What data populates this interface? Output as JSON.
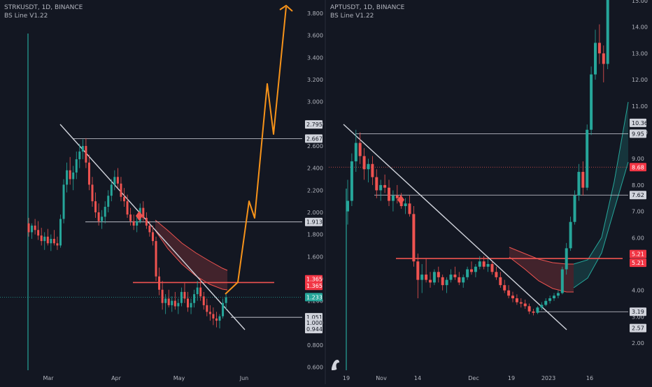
{
  "colors": {
    "background": "#131722",
    "panel": "#161a25",
    "axis_text": "#b2b5be",
    "up": "#26a69a",
    "down": "#ef5350",
    "projection": "#f7931a",
    "level_line": "#d1d4dc",
    "current_price": "#26a69a"
  },
  "left_panel": {
    "header": {
      "symbol": "STRKUSDT, 1D, BINANCE",
      "indicator": "BS Line V1.22"
    },
    "y_ticks": [
      "3.800",
      "3.600",
      "3.400",
      "3.200",
      "3.000",
      "2.800",
      "2.600",
      "2.400",
      "2.200",
      "2.000",
      "1.800",
      "1.600",
      "1.400",
      "1.200",
      "1.000",
      "0.800",
      "0.600"
    ],
    "x_ticks": [
      "Mar",
      "Apr",
      "May",
      "Jun"
    ],
    "price_labels": [
      {
        "text": "2.795",
        "kind": "level"
      },
      {
        "text": "2.667",
        "kind": "level"
      },
      {
        "text": "1.913",
        "kind": "level"
      },
      {
        "text": "1.365",
        "kind": "red"
      },
      {
        "text": "1.365",
        "kind": "red"
      },
      {
        "text": "1.233",
        "kind": "current"
      },
      {
        "text": "1.051",
        "kind": "level"
      },
      {
        "text": "1.000",
        "kind": "level"
      },
      {
        "text": "0.944",
        "kind": "level"
      }
    ]
  },
  "right_panel": {
    "header": {
      "symbol": "APTUSDT, 1D, BINANCE",
      "indicator": "BS Line V1.22"
    },
    "y_ticks": [
      "15.00",
      "14.00",
      "13.00",
      "12.00",
      "11.00",
      "10.00",
      "9.00",
      "8.00",
      "7.00",
      "6.00",
      "5.00",
      "4.00",
      "3.00",
      "2.00"
    ],
    "x_ticks": [
      "19",
      "Nov",
      "14",
      "Dec",
      "19",
      "2023",
      "16"
    ],
    "price_labels": [
      {
        "text": "10.36",
        "kind": "level"
      },
      {
        "text": "9.95",
        "kind": "level"
      },
      {
        "text": "8.68",
        "kind": "red"
      },
      {
        "text": "7.62",
        "kind": "level"
      },
      {
        "text": "5.21",
        "kind": "red"
      },
      {
        "text": "5.21",
        "kind": "red"
      },
      {
        "text": "3.19",
        "kind": "level"
      },
      {
        "text": "2.57",
        "kind": "level"
      }
    ]
  },
  "chart_data": [
    {
      "type": "candlestick",
      "title": "STRKUSDT, 1D, BINANCE",
      "indicator": "BS Line V1.22",
      "x_ticks": [
        "Mar",
        "Apr",
        "May",
        "Jun"
      ],
      "ylim": [
        0.55,
        3.95
      ],
      "horizontal_levels": [
        2.667,
        1.913,
        1.365,
        1.051
      ],
      "projection_path": [
        1.28,
        1.45,
        2.07,
        1.92,
        3.15,
        2.7,
        3.85
      ],
      "ohlc": [
        [
          1.9,
          1.95,
          1.78,
          1.82
        ],
        [
          1.82,
          1.9,
          1.76,
          1.88
        ],
        [
          1.88,
          1.94,
          1.8,
          1.84
        ],
        [
          1.84,
          1.92,
          1.75,
          1.79
        ],
        [
          1.79,
          1.86,
          1.7,
          1.74
        ],
        [
          1.74,
          1.82,
          1.66,
          1.78
        ],
        [
          1.78,
          1.85,
          1.7,
          1.72
        ],
        [
          1.72,
          1.8,
          1.65,
          1.76
        ],
        [
          1.76,
          1.84,
          1.7,
          1.72
        ],
        [
          1.72,
          1.78,
          1.66,
          1.7
        ],
        [
          1.7,
          1.98,
          1.68,
          1.94
        ],
        [
          1.94,
          2.3,
          1.9,
          2.25
        ],
        [
          2.25,
          2.45,
          2.18,
          2.38
        ],
        [
          2.38,
          2.5,
          2.25,
          2.3
        ],
        [
          2.3,
          2.42,
          2.2,
          2.36
        ],
        [
          2.36,
          2.55,
          2.3,
          2.48
        ],
        [
          2.48,
          2.62,
          2.4,
          2.55
        ],
        [
          2.55,
          2.66,
          2.48,
          2.6
        ],
        [
          2.6,
          2.67,
          2.4,
          2.45
        ],
        [
          2.45,
          2.52,
          2.2,
          2.25
        ],
        [
          2.25,
          2.32,
          2.05,
          2.1
        ],
        [
          2.1,
          2.18,
          1.95,
          2.0
        ],
        [
          2.0,
          2.08,
          1.88,
          1.92
        ],
        [
          1.92,
          2.02,
          1.85,
          1.96
        ],
        [
          1.96,
          2.1,
          1.9,
          2.05
        ],
        [
          2.05,
          2.2,
          2.0,
          2.15
        ],
        [
          2.15,
          2.3,
          2.1,
          2.25
        ],
        [
          2.25,
          2.38,
          2.2,
          2.32
        ],
        [
          2.32,
          2.4,
          2.22,
          2.26
        ],
        [
          2.26,
          2.32,
          2.1,
          2.14
        ],
        [
          2.14,
          2.22,
          2.05,
          2.1
        ],
        [
          2.1,
          2.16,
          1.95,
          1.98
        ],
        [
          1.98,
          2.04,
          1.88,
          1.92
        ],
        [
          1.92,
          1.98,
          1.84,
          1.88
        ],
        [
          1.88,
          1.96,
          1.82,
          1.92
        ],
        [
          1.92,
          2.08,
          1.9,
          2.04
        ],
        [
          2.04,
          2.1,
          1.92,
          1.95
        ],
        [
          1.95,
          2.0,
          1.85,
          1.88
        ],
        [
          1.88,
          1.92,
          1.78,
          1.82
        ],
        [
          1.82,
          1.88,
          1.7,
          1.74
        ],
        [
          1.74,
          1.78,
          1.38,
          1.42
        ],
        [
          1.42,
          1.5,
          1.25,
          1.3
        ],
        [
          1.3,
          1.38,
          1.12,
          1.18
        ],
        [
          1.18,
          1.26,
          1.08,
          1.22
        ],
        [
          1.22,
          1.3,
          1.14,
          1.16
        ],
        [
          1.16,
          1.24,
          1.1,
          1.2
        ],
        [
          1.2,
          1.28,
          1.12,
          1.15
        ],
        [
          1.15,
          1.22,
          1.08,
          1.18
        ],
        [
          1.18,
          1.32,
          1.15,
          1.28
        ],
        [
          1.28,
          1.36,
          1.18,
          1.22
        ],
        [
          1.22,
          1.28,
          1.1,
          1.14
        ],
        [
          1.14,
          1.22,
          1.08,
          1.18
        ],
        [
          1.18,
          1.3,
          1.14,
          1.26
        ],
        [
          1.26,
          1.38,
          1.2,
          1.32
        ],
        [
          1.32,
          1.4,
          1.2,
          1.24
        ],
        [
          1.24,
          1.28,
          1.12,
          1.16
        ],
        [
          1.16,
          1.22,
          1.06,
          1.1
        ],
        [
          1.1,
          1.16,
          1.02,
          1.08
        ],
        [
          1.08,
          1.14,
          0.98,
          1.04
        ],
        [
          1.04,
          1.1,
          0.96,
          1.02
        ],
        [
          1.02,
          1.08,
          0.95,
          1.06
        ],
        [
          1.06,
          1.22,
          1.04,
          1.18
        ],
        [
          1.18,
          1.26,
          1.12,
          1.23
        ]
      ]
    },
    {
      "type": "candlestick",
      "title": "APTUSDT, 1D, BINANCE",
      "indicator": "BS Line V1.22",
      "x_ticks": [
        "19",
        "Nov",
        "14",
        "Dec",
        "19",
        "2023",
        "16"
      ],
      "ylim": [
        1.3,
        15.3
      ],
      "horizontal_levels": [
        9.95,
        8.68,
        7.62,
        5.21,
        3.19
      ],
      "ohlc": [
        [
          7.0,
          8.2,
          6.5,
          7.4
        ],
        [
          7.4,
          9.2,
          7.2,
          8.9
        ],
        [
          8.9,
          10.1,
          8.5,
          9.6
        ],
        [
          9.6,
          10.0,
          8.8,
          9.1
        ],
        [
          9.1,
          9.4,
          8.2,
          8.6
        ],
        [
          8.6,
          9.0,
          8.1,
          8.8
        ],
        [
          8.8,
          9.1,
          8.0,
          8.3
        ],
        [
          8.3,
          8.6,
          7.5,
          7.8
        ],
        [
          7.8,
          8.2,
          7.4,
          8.0
        ],
        [
          8.0,
          8.4,
          7.7,
          7.9
        ],
        [
          7.9,
          8.2,
          7.2,
          7.4
        ],
        [
          7.4,
          7.8,
          7.0,
          7.6
        ],
        [
          7.6,
          8.0,
          7.3,
          7.5
        ],
        [
          7.5,
          7.7,
          7.1,
          7.2
        ],
        [
          7.2,
          7.5,
          6.9,
          7.3
        ],
        [
          7.3,
          7.6,
          6.8,
          6.9
        ],
        [
          6.9,
          7.2,
          4.9,
          5.1
        ],
        [
          5.1,
          5.4,
          3.7,
          4.4
        ],
        [
          4.4,
          5.0,
          3.9,
          4.6
        ],
        [
          4.6,
          5.2,
          4.3,
          4.4
        ],
        [
          4.4,
          4.7,
          4.1,
          4.3
        ],
        [
          4.3,
          4.8,
          4.2,
          4.7
        ],
        [
          4.7,
          4.9,
          4.3,
          4.5
        ],
        [
          4.5,
          4.6,
          4.0,
          4.2
        ],
        [
          4.2,
          4.5,
          3.9,
          4.4
        ],
        [
          4.4,
          4.8,
          4.3,
          4.6
        ],
        [
          4.6,
          4.9,
          4.4,
          4.5
        ],
        [
          4.5,
          4.7,
          4.2,
          4.3
        ],
        [
          4.3,
          4.6,
          4.1,
          4.5
        ],
        [
          4.5,
          4.9,
          4.4,
          4.8
        ],
        [
          4.8,
          5.1,
          4.6,
          4.7
        ],
        [
          4.7,
          5.0,
          4.5,
          4.9
        ],
        [
          4.9,
          5.3,
          4.8,
          5.1
        ],
        [
          5.1,
          5.3,
          4.8,
          4.9
        ],
        [
          4.9,
          5.2,
          4.7,
          5.0
        ],
        [
          5.0,
          5.1,
          4.6,
          4.7
        ],
        [
          4.7,
          4.9,
          4.4,
          4.5
        ],
        [
          4.5,
          4.7,
          4.1,
          4.2
        ],
        [
          4.2,
          4.4,
          3.9,
          4.0
        ],
        [
          4.0,
          4.2,
          3.7,
          3.8
        ],
        [
          3.8,
          3.95,
          3.55,
          3.7
        ],
        [
          3.7,
          3.85,
          3.45,
          3.55
        ],
        [
          3.55,
          3.7,
          3.35,
          3.5
        ],
        [
          3.5,
          3.65,
          3.3,
          3.4
        ],
        [
          3.4,
          3.5,
          3.1,
          3.2
        ],
        [
          3.2,
          3.3,
          3.05,
          3.15
        ],
        [
          3.15,
          3.4,
          3.1,
          3.35
        ],
        [
          3.35,
          3.55,
          3.25,
          3.45
        ],
        [
          3.45,
          3.7,
          3.4,
          3.6
        ],
        [
          3.6,
          3.8,
          3.5,
          3.7
        ],
        [
          3.7,
          3.9,
          3.6,
          3.8
        ],
        [
          3.8,
          4.0,
          3.7,
          3.9
        ],
        [
          3.9,
          4.9,
          3.85,
          4.8
        ],
        [
          4.8,
          5.8,
          4.6,
          5.6
        ],
        [
          5.6,
          6.8,
          5.5,
          6.6
        ],
        [
          6.6,
          7.8,
          6.5,
          7.6
        ],
        [
          7.6,
          8.8,
          7.4,
          8.5
        ],
        [
          8.5,
          8.9,
          7.6,
          7.9
        ],
        [
          7.9,
          10.3,
          7.8,
          10.1
        ],
        [
          10.1,
          12.5,
          9.9,
          12.2
        ],
        [
          12.2,
          13.9,
          12.0,
          13.4
        ],
        [
          13.4,
          14.1,
          12.6,
          13.0
        ],
        [
          13.0,
          13.3,
          11.9,
          12.6
        ],
        [
          12.6,
          15.3,
          12.4,
          15.3
        ]
      ]
    }
  ]
}
